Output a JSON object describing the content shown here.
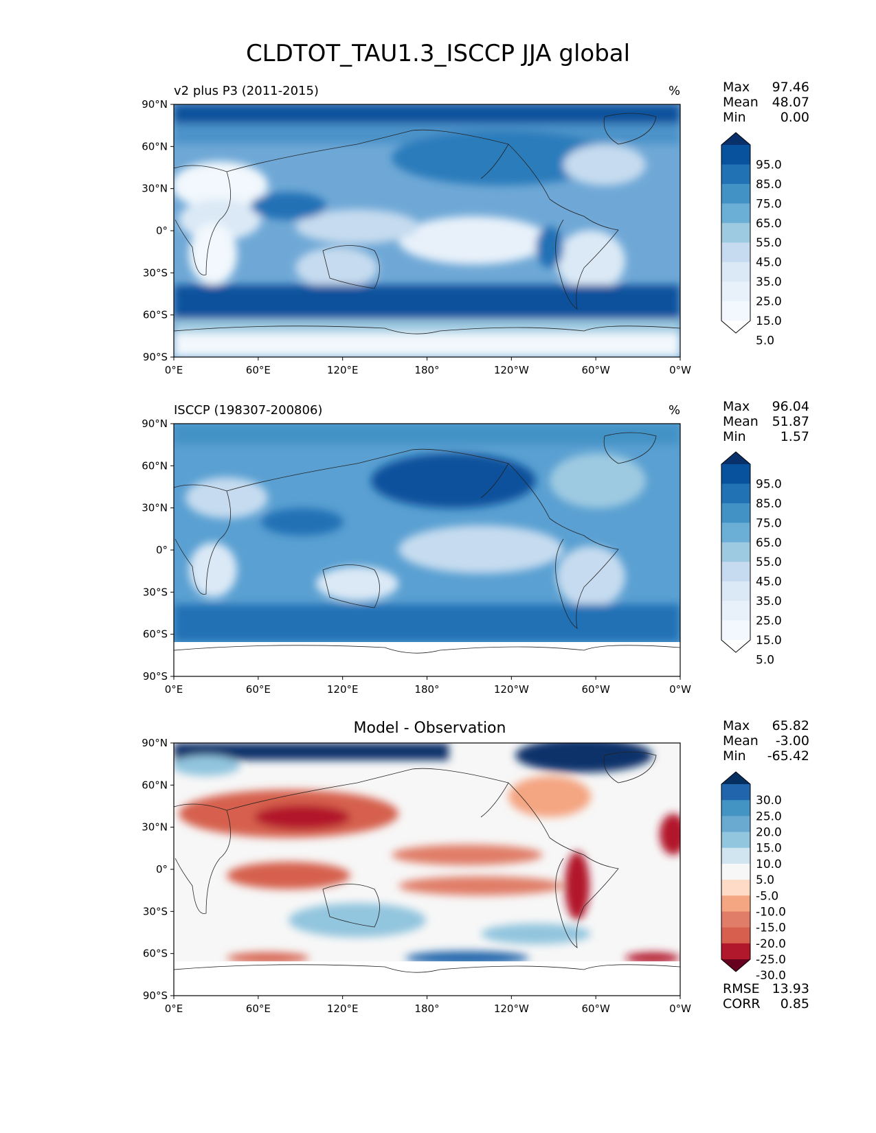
{
  "title": "CLDTOT_TAU1.3_ISCCP JJA global",
  "x_ticks": [
    "0°E",
    "60°E",
    "120°E",
    "180°",
    "120°W",
    "60°W",
    "0°W"
  ],
  "y_ticks": [
    "90°N",
    "60°N",
    "30°N",
    "0°",
    "30°S",
    "60°S",
    "90°S"
  ],
  "panels": [
    {
      "title_left": "v2 plus P3 (2011-2015)",
      "title_right": "%",
      "stats": {
        "max_label": "Max",
        "max": "97.46",
        "mean_label": "Mean",
        "mean": "48.07",
        "min_label": "Min",
        "min": "0.00"
      },
      "colorbar": {
        "labels": [
          "95.0",
          "85.0",
          "75.0",
          "65.0",
          "55.0",
          "45.0",
          "35.0",
          "25.0",
          "15.0",
          "5.0"
        ],
        "colors": [
          "#08306b",
          "#08519c",
          "#2171b5",
          "#4292c6",
          "#6baed6",
          "#9ecae1",
          "#c6dbef",
          "#dbe9f6",
          "#e8f1fa",
          "#f2f8fd",
          "#ffffff"
        ]
      }
    },
    {
      "title_left": "ISCCP (198307-200806)",
      "title_right": "%",
      "stats": {
        "max_label": "Max",
        "max": "96.04",
        "mean_label": "Mean",
        "mean": "51.87",
        "min_label": "Min",
        "min": "1.57"
      },
      "colorbar": {
        "labels": [
          "95.0",
          "85.0",
          "75.0",
          "65.0",
          "55.0",
          "45.0",
          "35.0",
          "25.0",
          "15.0",
          "5.0"
        ],
        "colors": [
          "#08306b",
          "#08519c",
          "#2171b5",
          "#4292c6",
          "#6baed6",
          "#9ecae1",
          "#c6dbef",
          "#dbe9f6",
          "#e8f1fa",
          "#f2f8fd",
          "#ffffff"
        ]
      }
    },
    {
      "title_center": "Model - Observation",
      "stats": {
        "max_label": "Max",
        "max": "65.82",
        "mean_label": "Mean",
        "mean": "-3.00",
        "min_label": "Min",
        "min": "-65.42"
      },
      "metrics": {
        "rmse_label": "RMSE",
        "rmse": "13.93",
        "corr_label": "CORR",
        "corr": "0.85"
      },
      "colorbar": {
        "labels": [
          "30.0",
          "25.0",
          "20.0",
          "15.0",
          "10.0",
          "5.0",
          "-5.0",
          "-10.0",
          "-15.0",
          "-20.0",
          "-25.0",
          "-30.0"
        ],
        "colors": [
          "#053061",
          "#2166ac",
          "#4393c3",
          "#6aa9d0",
          "#92c5de",
          "#d1e5f0",
          "#f7f7f7",
          "#fddbc7",
          "#f4a582",
          "#e07d68",
          "#d6604d",
          "#b2182b",
          "#67001f"
        ]
      }
    }
  ]
}
